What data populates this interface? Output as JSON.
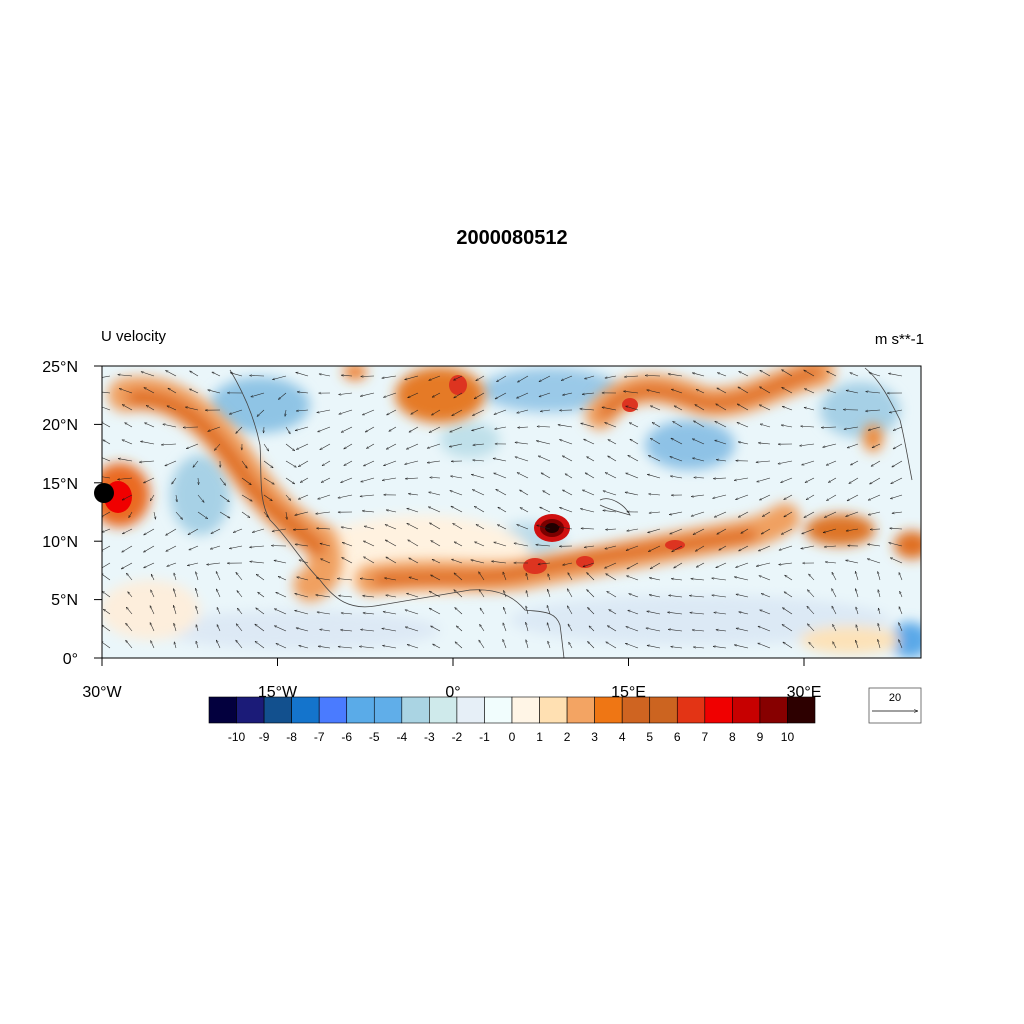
{
  "title": "2000080512",
  "left_label": "U velocity",
  "right_label": "m s**-1",
  "map": {
    "lon_range": [
      -30,
      40
    ],
    "lat_range": [
      0,
      25
    ],
    "lat_ticks": [
      "25°N",
      "20°N",
      "15°N",
      "10°N",
      "5°N",
      "0°"
    ],
    "lon_ticks": [
      "30°W",
      "15°W",
      "0°",
      "15°E",
      "30°E"
    ],
    "marker": {
      "lon": -30,
      "lat": 14
    }
  },
  "colorbar": {
    "labels": [
      "-10",
      "-9",
      "-8",
      "-7",
      "-6",
      "-5",
      "-4",
      "-3",
      "-2",
      "-1",
      "0",
      "1",
      "2",
      "3",
      "4",
      "5",
      "6",
      "7",
      "8",
      "9",
      "10"
    ],
    "colors": [
      "#03003e",
      "#1b1b78",
      "#12508e",
      "#1474cc",
      "#4a7bff",
      "#5aabe8",
      "#60aee9",
      "#aad4e3",
      "#cfeaeb",
      "#e6eff7",
      "#f1fdfd",
      "#fff5e6",
      "#ffe0b2",
      "#f3a463",
      "#ef7614",
      "#cf6421",
      "#cc6420",
      "#e33415",
      "#f00000",
      "#c70000",
      "#870000",
      "#2d0000"
    ]
  },
  "vector_reference": {
    "label": "20"
  }
}
